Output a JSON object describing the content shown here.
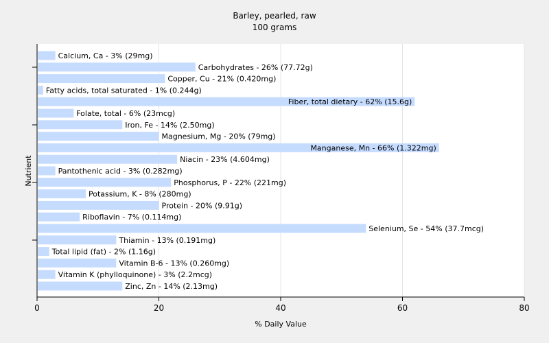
{
  "chart_data": {
    "type": "bar",
    "orientation": "horizontal",
    "title": "Barley, pearled, raw",
    "subtitle": "100 grams",
    "xlabel": "% Daily Value",
    "ylabel": "Nutrient",
    "xlim": [
      0,
      80
    ],
    "xticks": [
      0,
      20,
      40,
      60,
      80
    ],
    "grid": true,
    "bar_color": "#c6dcff",
    "categories": [
      "Calcium, Ca",
      "Carbohydrates",
      "Copper, Cu",
      "Fatty acids, total saturated",
      "Fiber, total dietary",
      "Folate, total",
      "Iron, Fe",
      "Magnesium, Mg",
      "Manganese, Mn",
      "Niacin",
      "Pantothenic acid",
      "Phosphorus, P",
      "Potassium, K",
      "Protein",
      "Riboflavin",
      "Selenium, Se",
      "Thiamin",
      "Total lipid (fat)",
      "Vitamin B-6",
      "Vitamin K (phylloquinone)",
      "Zinc, Zn"
    ],
    "values": [
      3,
      26,
      21,
      1,
      62,
      6,
      14,
      20,
      66,
      23,
      3,
      22,
      8,
      20,
      7,
      54,
      13,
      2,
      13,
      3,
      14
    ],
    "labels": [
      "Calcium, Ca - 3% (29mg)",
      "Carbohydrates - 26% (77.72g)",
      "Copper, Cu - 21% (0.420mg)",
      "Fatty acids, total saturated - 1% (0.244g)",
      "Fiber, total dietary - 62% (15.6g)",
      "Folate, total - 6% (23mcg)",
      "Iron, Fe - 14% (2.50mg)",
      "Magnesium, Mg - 20% (79mg)",
      "Manganese, Mn - 66% (1.322mg)",
      "Niacin - 23% (4.604mg)",
      "Pantothenic acid - 3% (0.282mg)",
      "Phosphorus, P - 22% (221mg)",
      "Potassium, K - 8% (280mg)",
      "Protein - 20% (9.91g)",
      "Riboflavin - 7% (0.114mg)",
      "Selenium, Se - 54% (37.7mcg)",
      "Thiamin - 13% (0.191mg)",
      "Total lipid (fat) - 2% (1.16g)",
      "Vitamin B-6 - 13% (0.260mg)",
      "Vitamin K (phylloquinone) - 3% (2.2mcg)",
      "Zinc, Zn - 14% (2.13mg)"
    ],
    "label_inside_threshold": 60
  }
}
